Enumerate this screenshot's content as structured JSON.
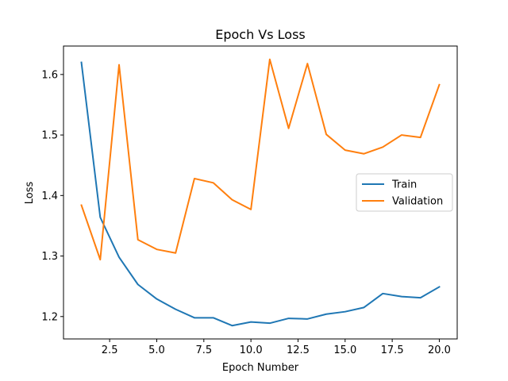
{
  "chart_data": {
    "type": "line",
    "title": "Epoch Vs Loss",
    "xlabel": "Epoch Number",
    "ylabel": "Loss",
    "xlim": [
      0.05,
      20.95
    ],
    "ylim": [
      1.163,
      1.647
    ],
    "xticks": [
      2.5,
      5.0,
      7.5,
      10.0,
      12.5,
      15.0,
      17.5,
      20.0
    ],
    "xtick_labels": [
      "2.5",
      "5.0",
      "7.5",
      "10.0",
      "12.5",
      "15.0",
      "17.5",
      "20.0"
    ],
    "yticks": [
      1.2,
      1.3,
      1.4,
      1.5,
      1.6
    ],
    "ytick_labels": [
      "1.2",
      "1.3",
      "1.4",
      "1.5",
      "1.6"
    ],
    "grid": false,
    "legend_position": "center-right",
    "x": [
      1,
      2,
      3,
      4,
      5,
      6,
      7,
      8,
      9,
      10,
      11,
      12,
      13,
      14,
      15,
      16,
      17,
      18,
      19,
      20
    ],
    "series": [
      {
        "name": "Train",
        "color": "#1f77b4",
        "values": [
          1.62,
          1.364,
          1.298,
          1.253,
          1.229,
          1.212,
          1.198,
          1.198,
          1.185,
          1.191,
          1.189,
          1.197,
          1.196,
          1.204,
          1.208,
          1.215,
          1.238,
          1.233,
          1.231,
          1.249
        ]
      },
      {
        "name": "Validation",
        "color": "#ff7f0e",
        "values": [
          1.384,
          1.294,
          1.616,
          1.327,
          1.311,
          1.305,
          1.428,
          1.421,
          1.393,
          1.377,
          1.625,
          1.511,
          1.618,
          1.501,
          1.475,
          1.469,
          1.48,
          1.5,
          1.496,
          1.583
        ]
      }
    ]
  }
}
